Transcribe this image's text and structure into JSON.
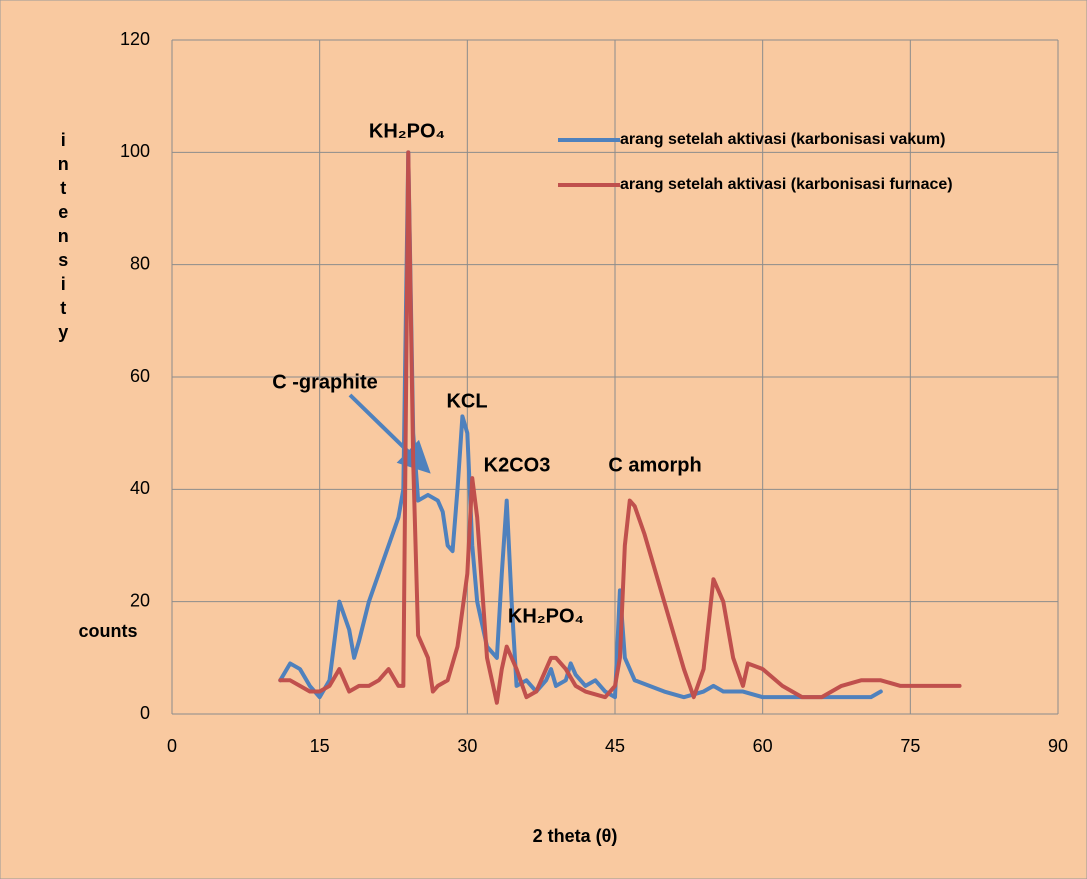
{
  "chart_data": {
    "type": "line",
    "ylabel_top": "intensity",
    "ylabel_bottom": "counts",
    "xlabel": "2 theta (θ)",
    "xlim": [
      0,
      90
    ],
    "xticks": [
      0,
      15,
      30,
      45,
      60,
      75,
      90
    ],
    "ylim": [
      0,
      120
    ],
    "yticks": [
      0,
      20,
      40,
      60,
      80,
      100,
      120
    ],
    "grid": true,
    "legend": "upper right",
    "annotations": [
      "KH₂PO₄",
      "C -graphite",
      "KCL",
      "K2CO3",
      "C amorph",
      "KH₂PO₄"
    ],
    "series": [
      {
        "name": "arang setelah aktivasi (karbonisasi vakum)",
        "color": "#4f81bd",
        "x": [
          11,
          12,
          13,
          14,
          15,
          16,
          17,
          18,
          18.5,
          19,
          20,
          22,
          23,
          23.5,
          24,
          24.5,
          25,
          26,
          27,
          27.5,
          28,
          28.5,
          29,
          29.5,
          30,
          30.5,
          31,
          32,
          33,
          33.5,
          34,
          34.5,
          35,
          36,
          37,
          38,
          38.5,
          39,
          40,
          40.5,
          41,
          42,
          43,
          44,
          45,
          45.5,
          46,
          47,
          50,
          52,
          54,
          55,
          56,
          58,
          60,
          65,
          70,
          71,
          72
        ],
        "values": [
          6,
          9,
          8,
          5,
          3,
          6,
          20,
          15,
          10,
          13,
          20,
          30,
          35,
          40,
          100,
          50,
          38,
          39,
          38,
          36,
          30,
          29,
          40,
          53,
          50,
          30,
          20,
          12,
          10,
          25,
          38,
          20,
          5,
          6,
          4,
          6,
          8,
          5,
          6,
          9,
          7,
          5,
          6,
          4,
          3,
          22,
          10,
          6,
          4,
          3,
          4,
          5,
          4,
          4,
          3,
          3,
          3,
          3,
          4
        ]
      },
      {
        "name": "arang setelah aktivasi (karbonisasi furnace)",
        "color": "#c0504d",
        "x": [
          11,
          12,
          13,
          14,
          15,
          16,
          17,
          17.5,
          18,
          19,
          20,
          21,
          22,
          23,
          23.5,
          24,
          24.5,
          25,
          26,
          26.5,
          27,
          28,
          29,
          30,
          30.5,
          31,
          32,
          33,
          33.5,
          34,
          35,
          36,
          37,
          38,
          38.5,
          39,
          40,
          41,
          42,
          44,
          45,
          45.5,
          46,
          46.5,
          47,
          48,
          50,
          52,
          53,
          54,
          55,
          56,
          57,
          58,
          58.5,
          60,
          62,
          64,
          66,
          68,
          70,
          72,
          74,
          80
        ],
        "values": [
          6,
          6,
          5,
          4,
          4,
          5,
          8,
          6,
          4,
          5,
          5,
          6,
          8,
          5,
          5,
          100,
          45,
          14,
          10,
          4,
          5,
          6,
          12,
          25,
          42,
          35,
          10,
          2,
          8,
          12,
          8,
          3,
          4,
          8,
          10,
          10,
          8,
          5,
          4,
          3,
          5,
          10,
          30,
          38,
          37,
          32,
          20,
          8,
          3,
          8,
          24,
          20,
          10,
          5,
          9,
          8,
          5,
          3,
          3,
          5,
          6,
          6,
          5,
          5
        ]
      }
    ]
  }
}
